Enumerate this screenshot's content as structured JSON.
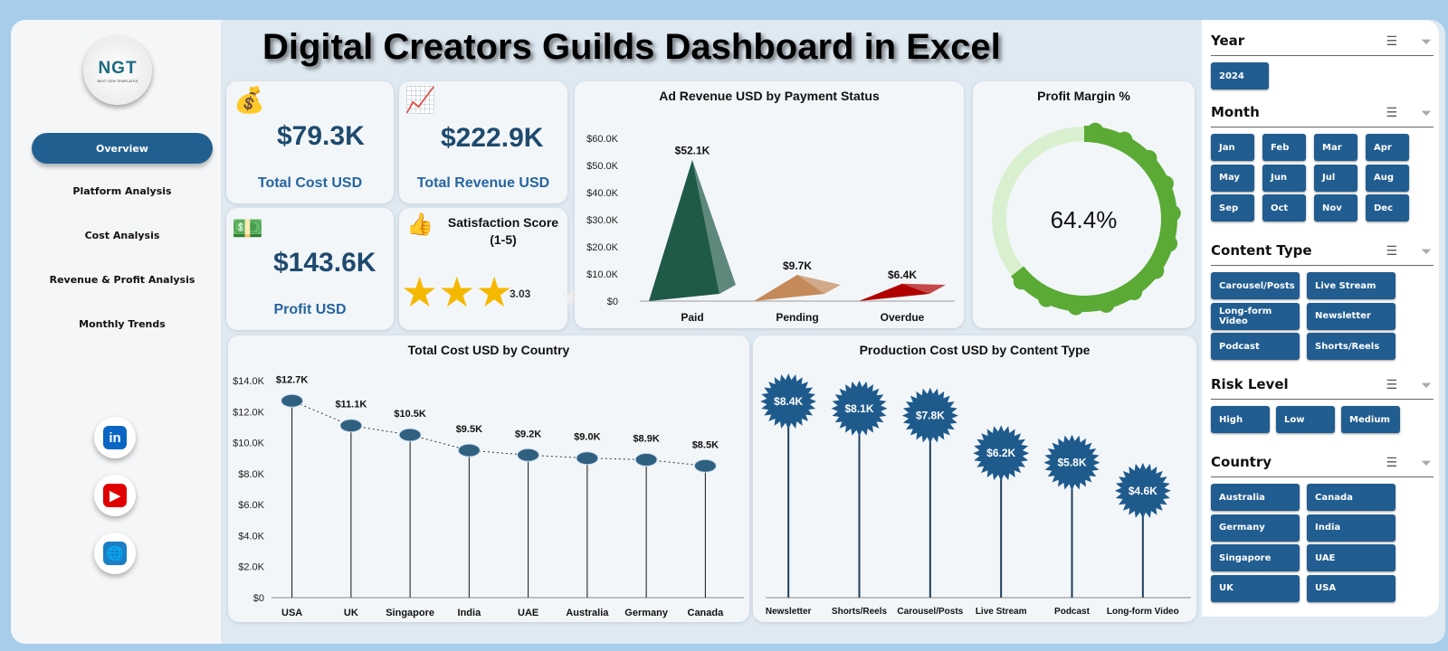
{
  "title": "Digital Creators Guilds Dashboard in Excel",
  "logo": {
    "text": "NGT",
    "sub": "NEXT GEN TEMPLATES"
  },
  "nav": [
    {
      "label": "Overview",
      "active": true
    },
    {
      "label": "Platform Analysis"
    },
    {
      "label": "Cost Analysis"
    },
    {
      "label": "Revenue & Profit Analysis"
    },
    {
      "label": "Monthly Trends"
    }
  ],
  "social": [
    {
      "icon": "linkedin-icon",
      "glyph": "in",
      "color": "#0a66c2"
    },
    {
      "icon": "youtube-icon",
      "glyph": "▶",
      "color": "#e00000"
    },
    {
      "icon": "globe-icon",
      "glyph": "🌐",
      "color": "#1a7fc4"
    }
  ],
  "kpis": {
    "total_cost": {
      "value": "$79.3K",
      "label": "Total Cost USD",
      "icon": "money-bag-hand-icon"
    },
    "total_revenue": {
      "value": "$222.9K",
      "label": "Total Revenue USD",
      "icon": "revenue-growth-icon"
    },
    "profit": {
      "value": "$143.6K",
      "label": "Profit USD",
      "icon": "profit-icon"
    },
    "satisfaction": {
      "label": "Satisfaction Score",
      "sub": "(1-5)",
      "value": "3.03",
      "score": 3.03,
      "max": 5,
      "icon": "thumbs-up-stars-icon"
    }
  },
  "chart_data": [
    {
      "type": "bar",
      "title": "Ad Revenue USD by Payment Status",
      "categories": [
        "Paid",
        "Pending",
        "Overdue"
      ],
      "values": [
        52.1,
        9.7,
        6.4
      ],
      "labels": [
        "$52.1K",
        "$9.7K",
        "$6.4K"
      ],
      "ylim": [
        0,
        60
      ],
      "yticks": [
        "$0",
        "$10.0K",
        "$20.0K",
        "$30.0K",
        "$40.0K",
        "$50.0K",
        "$60.0K"
      ],
      "colors": [
        "#1f5a48",
        "#c48a5a",
        "#b00000"
      ],
      "unit": "K USD"
    },
    {
      "type": "pie",
      "title": "Profit Margin %",
      "value": 64.4,
      "label": "64.4%",
      "colors": [
        "#5aaa35",
        "#d8f0d0"
      ]
    },
    {
      "type": "line",
      "title": "Total Cost USD by Country",
      "categories": [
        "USA",
        "UK",
        "Singapore",
        "India",
        "UAE",
        "Australia",
        "Germany",
        "Canada"
      ],
      "values": [
        12.7,
        11.1,
        10.5,
        9.5,
        9.2,
        9.0,
        8.9,
        8.5
      ],
      "labels": [
        "$12.7K",
        "$11.1K",
        "$10.5K",
        "$9.5K",
        "$9.2K",
        "$9.0K",
        "$8.9K",
        "$8.5K"
      ],
      "ylim": [
        0,
        14
      ],
      "yticks": [
        "$0",
        "$2.0K",
        "$4.0K",
        "$6.0K",
        "$8.0K",
        "$10.0K",
        "$12.0K",
        "$14.0K"
      ],
      "unit": "K USD"
    },
    {
      "type": "scatter",
      "title": "Production Cost USD by Content Type",
      "categories": [
        "Newsletter",
        "Shorts/Reels",
        "Carousel/Posts",
        "Live Stream",
        "Podcast",
        "Long-form Video"
      ],
      "values": [
        8.4,
        8.1,
        7.8,
        6.2,
        5.8,
        4.6
      ],
      "labels": [
        "$8.4K",
        "$8.1K",
        "$7.8K",
        "$6.2K",
        "$5.8K",
        "$4.6K"
      ],
      "color": "#1f5a8c",
      "unit": "K USD"
    }
  ],
  "slicers": [
    {
      "title": "Year",
      "items": [
        "2024"
      ]
    },
    {
      "title": "Month",
      "items": [
        "Jan",
        "Feb",
        "Mar",
        "Apr",
        "May",
        "Jun",
        "Jul",
        "Aug",
        "Sep",
        "Oct",
        "Nov",
        "Dec"
      ]
    },
    {
      "title": "Content Type",
      "items": [
        "Carousel/Posts",
        "Live Stream",
        "Long-form Video",
        "Newsletter",
        "Podcast",
        "Shorts/Reels"
      ]
    },
    {
      "title": "Risk Level",
      "items": [
        "High",
        "Low",
        "Medium"
      ]
    },
    {
      "title": "Country",
      "items": [
        "Australia",
        "Canada",
        "Germany",
        "India",
        "Singapore",
        "UAE",
        "UK",
        "USA"
      ]
    }
  ]
}
